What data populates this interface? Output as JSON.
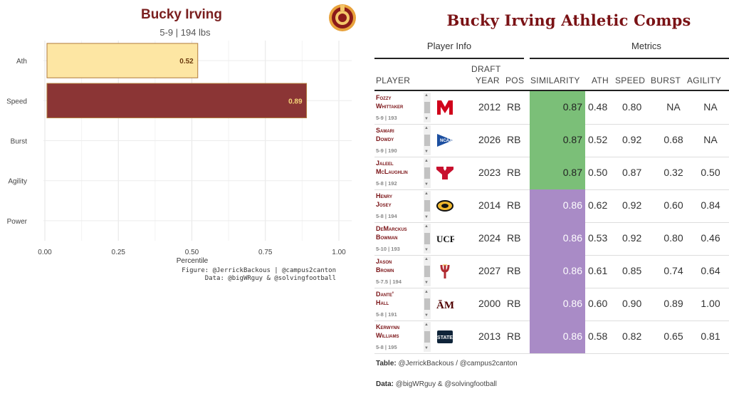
{
  "chart": {
    "title": "Bucky Irving",
    "subtitle": "5-9 | 194 lbs",
    "caption_line1": "Figure: @JerrickBackous | @campus2canton",
    "caption_line2": "Data: @bigWRguy & @solvingfootball",
    "colors": {
      "ath_fill": "#fde6a3",
      "speed_fill": "#8b3535",
      "bar_border": "#b07a3a",
      "title": "#7a1f1f",
      "logo": "#8b1a1a"
    }
  },
  "chart_data": {
    "type": "bar",
    "orientation": "horizontal",
    "categories": [
      "Ath",
      "Speed",
      "Burst",
      "Agility",
      "Power"
    ],
    "values": [
      0.52,
      0.89,
      null,
      null,
      null
    ],
    "data_labels": [
      "0.52",
      "0.89",
      "",
      "",
      ""
    ],
    "title": "Bucky Irving",
    "subtitle": "5-9 | 194 lbs",
    "xlabel": "Percentile",
    "ylabel": "",
    "xlim": [
      0,
      1
    ],
    "xticks": [
      "0.00",
      "0.25",
      "0.50",
      "0.75",
      "1.00"
    ],
    "grid": true
  },
  "table": {
    "title": "Bucky Irving Athletic Comps",
    "spanners": {
      "player_info": "Player Info",
      "metrics": "Metrics"
    },
    "columns": {
      "player": "PLAYER",
      "draft_year_line1": "DRAFT",
      "draft_year_line2": "YEAR",
      "pos": "POS",
      "similarity": "SIMILARITY",
      "ath": "ATH",
      "speed": "SPEED",
      "burst": "BURST",
      "agility": "AGILITY"
    },
    "colors": {
      "sim_green": "#7bbf78",
      "sim_purple": "#a98bc6",
      "name": "#7a1215"
    },
    "rows": [
      {
        "first": "Fozzy",
        "last": "Whittaker",
        "meta": "5-9 | 193",
        "school_icon": "maryland-m-icon",
        "year": "2012",
        "pos": "RB",
        "similarity": "0.87",
        "sim_color": "green",
        "ath": "0.48",
        "speed": "0.80",
        "burst": "NA",
        "agility": "NA"
      },
      {
        "first": "Samari",
        "last": "Dowdy",
        "meta": "5-9 | 190",
        "school_icon": "ncaa-pennant-icon",
        "year": "2026",
        "pos": "RB",
        "similarity": "0.87",
        "sim_color": "green",
        "ath": "0.52",
        "speed": "0.92",
        "burst": "0.68",
        "agility": "NA"
      },
      {
        "first": "Jaleel",
        "last": "McLaughlin",
        "meta": "5-8 | 192",
        "school_icon": "youngstown-y-icon",
        "year": "2023",
        "pos": "RB",
        "similarity": "0.87",
        "sim_color": "green",
        "ath": "0.50",
        "speed": "0.87",
        "burst": "0.32",
        "agility": "0.50"
      },
      {
        "first": "Henry",
        "last": "Josey",
        "meta": "5-8 | 194",
        "school_icon": "missouri-tiger-icon",
        "year": "2014",
        "pos": "RB",
        "similarity": "0.86",
        "sim_color": "purple",
        "ath": "0.62",
        "speed": "0.92",
        "burst": "0.60",
        "agility": "0.84"
      },
      {
        "first": "DeMarckus",
        "last": "Bowman",
        "meta": "5-10 | 193",
        "school_icon": "ucf-icon",
        "year": "2024",
        "pos": "RB",
        "similarity": "0.86",
        "sim_color": "purple",
        "ath": "0.53",
        "speed": "0.92",
        "burst": "0.80",
        "agility": "0.46"
      },
      {
        "first": "Jason",
        "last": "Brown",
        "meta": "5-7.5 | 194",
        "school_icon": "asu-pitchfork-icon",
        "year": "2027",
        "pos": "RB",
        "similarity": "0.86",
        "sim_color": "purple",
        "ath": "0.61",
        "speed": "0.85",
        "burst": "0.74",
        "agility": "0.64"
      },
      {
        "first": "Dante'",
        "last": "Hall",
        "meta": "5-8 | 191",
        "school_icon": "texas-am-icon",
        "year": "2000",
        "pos": "RB",
        "similarity": "0.86",
        "sim_color": "purple",
        "ath": "0.60",
        "speed": "0.90",
        "burst": "0.89",
        "agility": "1.00"
      },
      {
        "first": "Kerwynn",
        "last": "Williams",
        "meta": "5-8 | 195",
        "school_icon": "utah-state-icon",
        "year": "2013",
        "pos": "RB",
        "similarity": "0.86",
        "sim_color": "purple",
        "ath": "0.58",
        "speed": "0.82",
        "burst": "0.65",
        "agility": "0.81"
      }
    ],
    "footer_table_label": "Table:",
    "footer_table_text": " @JerrickBackous / @campus2canton",
    "footer_data_label": "Data:",
    "footer_data_text": " @bigWRguy & @solvingfootball"
  }
}
